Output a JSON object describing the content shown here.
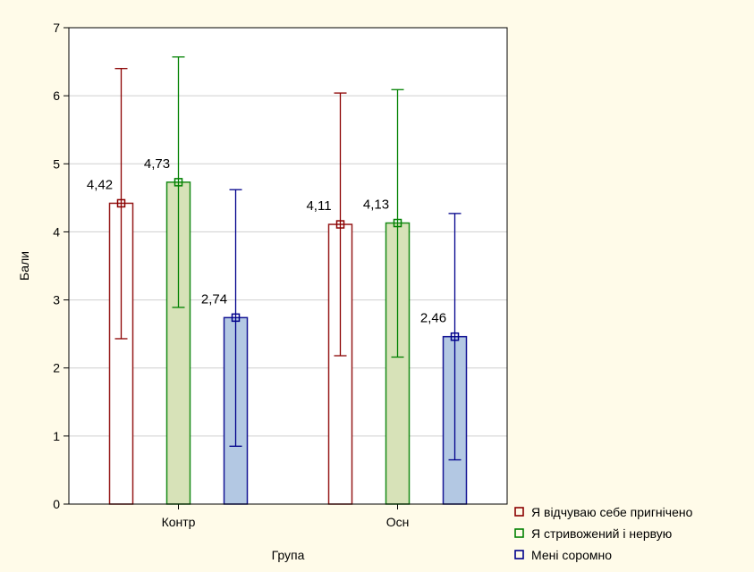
{
  "chart_data": {
    "type": "bar",
    "title": "",
    "xlabel": "Група",
    "ylabel": "Бали",
    "ylim": [
      0,
      7
    ],
    "yticks": [
      0,
      1,
      2,
      3,
      4,
      5,
      6,
      7
    ],
    "grid": true,
    "legend_position": "bottom-right",
    "error_bars": true,
    "categories": [
      "Контр",
      "Осн"
    ],
    "series": [
      {
        "name": "Я відчуваю себе пригнічено",
        "values": [
          4.42,
          4.11
        ],
        "value_labels": [
          "4,42",
          "4,11"
        ],
        "err_low": [
          2.43,
          2.18
        ],
        "err_high": [
          6.4,
          6.04
        ],
        "line_color": "#8b0000",
        "fill_color": "#ffffff"
      },
      {
        "name": "Я стривожений і нервую",
        "values": [
          4.73,
          4.13
        ],
        "value_labels": [
          "4,73",
          "4,13"
        ],
        "err_low": [
          2.89,
          2.16
        ],
        "err_high": [
          6.57,
          6.09
        ],
        "line_color": "#008000",
        "fill_color": "#d7e2b8"
      },
      {
        "name": "Мені соромно",
        "values": [
          2.74,
          2.46
        ],
        "value_labels": [
          "2,74",
          "2,46"
        ],
        "err_low": [
          0.85,
          0.65
        ],
        "err_high": [
          4.62,
          4.27
        ],
        "line_color": "#00008b",
        "fill_color": "#b3c8e3"
      }
    ]
  },
  "colors": {
    "background": "#fffbe9",
    "plot_background": "#ffffff",
    "grid": "#cfcfcf"
  }
}
